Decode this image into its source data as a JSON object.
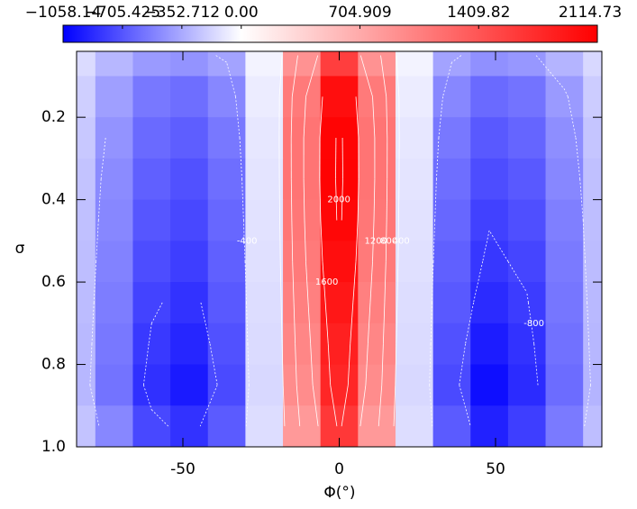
{
  "chart_data": {
    "type": "contour",
    "xlabel": "Φ(°)",
    "ylabel": "σ",
    "xlim": [
      -84,
      84
    ],
    "ylim": [
      0.04,
      1.0
    ],
    "y_inverted": true,
    "xticks": [
      -50,
      0,
      50
    ],
    "yticks": [
      0.2,
      0.4,
      0.6,
      0.8,
      {
        "value": 1.0,
        "label": "1.0"
      }
    ],
    "colormap": [
      "#0000ff",
      "#ffffff",
      "#ff0000"
    ],
    "colorbar": {
      "lim": [
        -1058.14,
        2114.73
      ],
      "ticks": [
        {
          "value": -1058.14,
          "label": "−1058.14"
        },
        {
          "value": -705.425,
          "label": "−705.425"
        },
        {
          "value": -352.712,
          "label": "−352.712"
        },
        {
          "value": 0,
          "label": "0.00"
        },
        {
          "value": 704.909,
          "label": "704.909"
        },
        {
          "value": 1409.82,
          "label": "1409.82"
        },
        {
          "value": 2114.73,
          "label": "2114.73"
        }
      ]
    },
    "contour_levels": [
      -800,
      -400,
      400,
      800,
      1200,
      1600,
      2000
    ],
    "contour_color": "#ffffff",
    "x": [
      -84,
      -72,
      -60,
      -48,
      -36,
      -24,
      -12,
      0,
      12,
      24,
      36,
      48,
      60,
      72,
      84
    ],
    "y": [
      0.05,
      0.15,
      0.25,
      0.35,
      0.45,
      0.55,
      0.65,
      0.75,
      0.85,
      0.95
    ],
    "z": [
      [
        -150,
        -300,
        -420,
        -450,
        -380,
        -50,
        900,
        1600,
        900,
        -50,
        -380,
        -460,
        -430,
        -310,
        -160
      ],
      [
        -200,
        -400,
        -560,
        -600,
        -500,
        -80,
        1100,
        2000,
        1100,
        -80,
        -500,
        -620,
        -580,
        -420,
        -210
      ],
      [
        -230,
        -450,
        -620,
        -670,
        -560,
        -100,
        1150,
        2080,
        1150,
        -100,
        -560,
        -690,
        -640,
        -470,
        -240
      ],
      [
        -250,
        -480,
        -660,
        -720,
        -600,
        -110,
        1150,
        2090,
        1150,
        -110,
        -600,
        -740,
        -690,
        -500,
        -260
      ],
      [
        -260,
        -500,
        -700,
        -760,
        -630,
        -120,
        1130,
        2060,
        1130,
        -120,
        -630,
        -790,
        -730,
        -530,
        -270
      ],
      [
        -270,
        -520,
        -740,
        -800,
        -660,
        -130,
        1100,
        2000,
        1100,
        -130,
        -660,
        -830,
        -770,
        -550,
        -280
      ],
      [
        -280,
        -540,
        -780,
        -850,
        -690,
        -140,
        1050,
        1920,
        1050,
        -140,
        -690,
        -880,
        -810,
        -570,
        -290
      ],
      [
        -290,
        -560,
        -820,
        -900,
        -720,
        -150,
        1000,
        1850,
        1000,
        -150,
        -720,
        -940,
        -850,
        -590,
        -300
      ],
      [
        -300,
        -580,
        -860,
        -950,
        -750,
        -160,
        950,
        1800,
        950,
        -160,
        -750,
        -1000,
        -880,
        -610,
        -310
      ],
      [
        -250,
        -500,
        -760,
        -850,
        -680,
        -140,
        850,
        1650,
        850,
        -140,
        -680,
        -920,
        -800,
        -550,
        -270
      ]
    ]
  }
}
